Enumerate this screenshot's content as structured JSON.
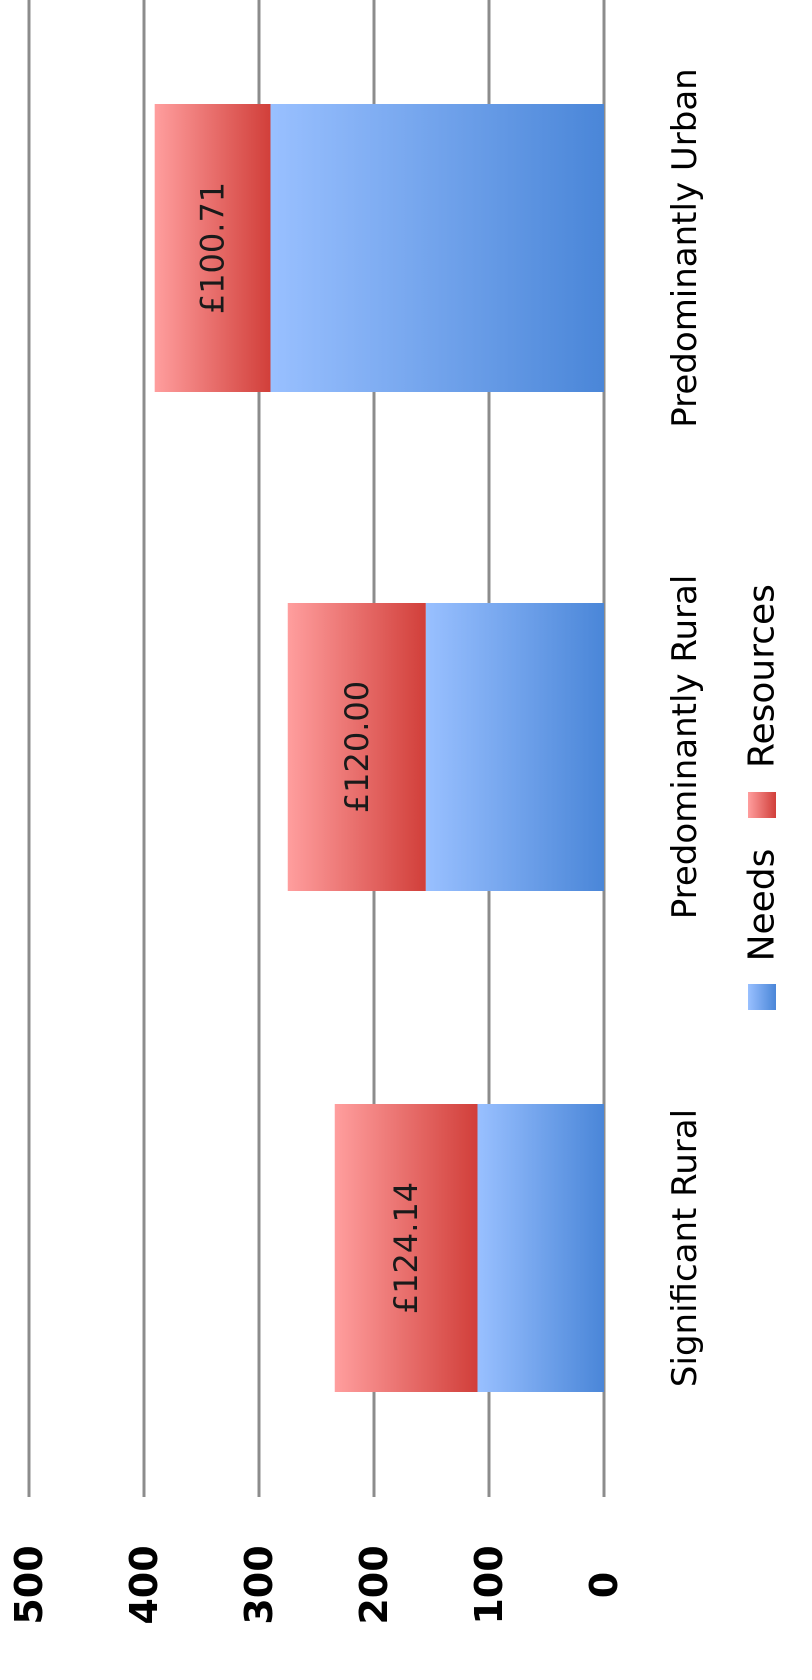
{
  "chart_data": {
    "type": "bar",
    "stacked": true,
    "categories": [
      "Significant Rural",
      "Predominantly Rural",
      "Predominantly Urban"
    ],
    "series": [
      {
        "name": "Needs",
        "values": [
          110,
          155,
          290
        ],
        "color": "#4A86D8",
        "color_light": "#99C0FF"
      },
      {
        "name": "Resources",
        "values": [
          124.14,
          120.0,
          100.71
        ],
        "color": "#D13F3A",
        "color_light": "#FF9E9E"
      }
    ],
    "data_labels": [
      "£124.14",
      "£120.00",
      "£100.71"
    ],
    "y_ticks": [
      "0",
      "100",
      "200",
      "300",
      "400",
      "500"
    ],
    "ylim": [
      0,
      500
    ],
    "grid": true,
    "legend_position": "bottom",
    "rotated": "90deg clockwise (page printed sideways)"
  }
}
